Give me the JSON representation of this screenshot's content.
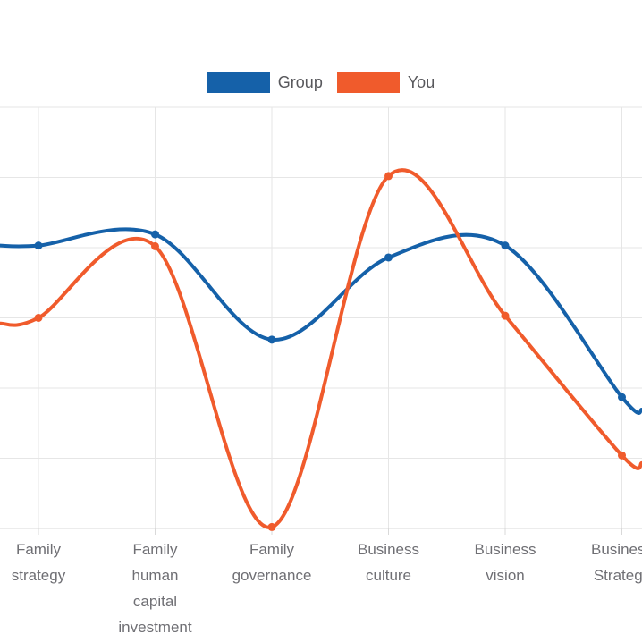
{
  "chart_data": {
    "type": "line",
    "line_style": "spline",
    "title": "",
    "categories": [
      "Family strategy",
      "Family human capital investment",
      "Family governance",
      "Business culture",
      "Business vision",
      "Business Strategy"
    ],
    "series": [
      {
        "name": "Group",
        "color": "#1561a9",
        "values": [
          4.03,
          4.19,
          2.69,
          3.86,
          4.03,
          1.87
        ],
        "edge_left_value": 4.03,
        "edge_right_value": 1.69
      },
      {
        "name": "You",
        "color": "#f05b2c",
        "values": [
          3.0,
          4.02,
          0.02,
          5.02,
          3.03,
          1.04
        ],
        "edge_left_value": 2.92,
        "edge_right_value": 0.93
      }
    ],
    "yaxis": {
      "visible_range": [
        0,
        6
      ],
      "gridline_step": 1,
      "tick_labels_visible": false
    },
    "xaxis": {
      "tick_labels_visible": true
    },
    "grid": "on",
    "legend_position": "top-center",
    "markers": "filled-circle"
  },
  "colors": {
    "background": "#ffffff",
    "gridline": "#e6e6e6",
    "axis_line": "#d9d9d9",
    "tick": "#d9d9d9",
    "xaxis_label_text": "#6f6f74",
    "legend_label_text": "#58585c"
  }
}
